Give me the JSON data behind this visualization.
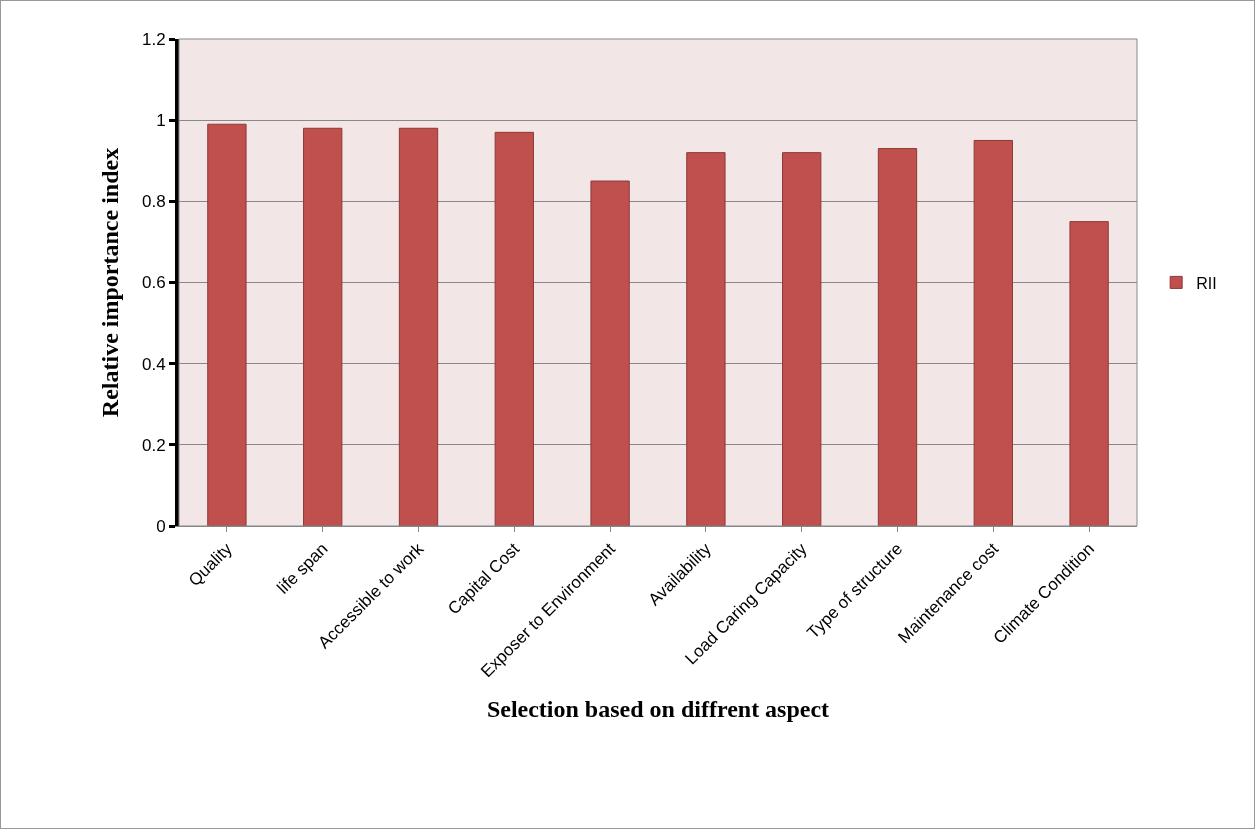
{
  "chart_data": {
    "type": "bar",
    "xlabel": "Selection based on diffrent aspect",
    "ylabel": "Relative importance index",
    "categories": [
      "Quality",
      "life span",
      "Accessible to work",
      "Capital Cost",
      "Exposer to Environment",
      "Availability",
      "Load Caring Capacity",
      "Type of structure",
      "Maintenance cost",
      "Climate Condition"
    ],
    "series": [
      {
        "name": "RII",
        "color": "#c0504d",
        "values": [
          0.99,
          0.98,
          0.98,
          0.97,
          0.85,
          0.92,
          0.92,
          0.93,
          0.95,
          0.75
        ]
      }
    ],
    "ylim": [
      0,
      1.2
    ],
    "yticks": [
      0,
      0.2,
      0.4,
      0.6,
      0.8,
      1,
      1.2
    ],
    "grid": "y",
    "legend": "right"
  }
}
